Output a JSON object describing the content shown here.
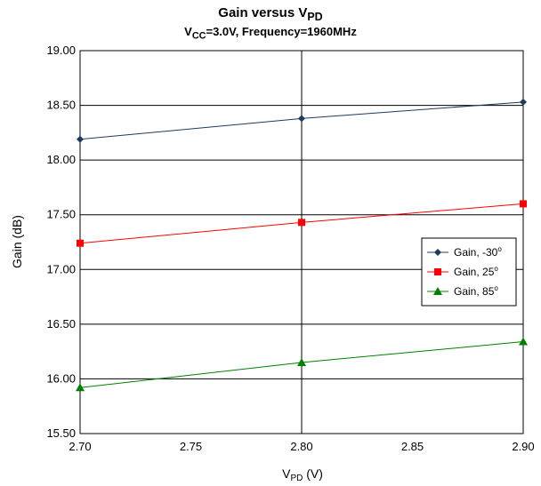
{
  "chart_data": {
    "type": "line",
    "title": {
      "main": "Gain versus V",
      "main_sub": "PD"
    },
    "subtitle": {
      "p1": "V",
      "p1_sub": "CC",
      "p2": "=3.0V, Frequency=1960MHz"
    },
    "xlabel": {
      "main": "V",
      "sub": "PD",
      "unit": " (V)"
    },
    "ylabel": "Gain (dB)",
    "x": [
      2.7,
      2.8,
      2.9
    ],
    "x_ticks": [
      "2.70",
      "2.75",
      "2.80",
      "2.85",
      "2.90"
    ],
    "y_ticks": [
      "15.50",
      "16.00",
      "16.50",
      "17.00",
      "17.50",
      "18.00",
      "18.50",
      "19.00"
    ],
    "xlim": [
      2.7,
      2.9
    ],
    "ylim": [
      15.5,
      19.0
    ],
    "grid": true,
    "legend_position": "right",
    "series": [
      {
        "name": "Gain, -30",
        "deg": "o",
        "color": "#1f3a5f",
        "marker": "diamond",
        "values": [
          18.19,
          18.38,
          18.53
        ]
      },
      {
        "name": "Gain, 25",
        "deg": "o",
        "color": "#ff0000",
        "marker": "square",
        "values": [
          17.24,
          17.43,
          17.6
        ]
      },
      {
        "name": "Gain, 85",
        "deg": "o",
        "color": "#008000",
        "marker": "triangle",
        "values": [
          15.92,
          16.15,
          16.34
        ]
      }
    ]
  }
}
